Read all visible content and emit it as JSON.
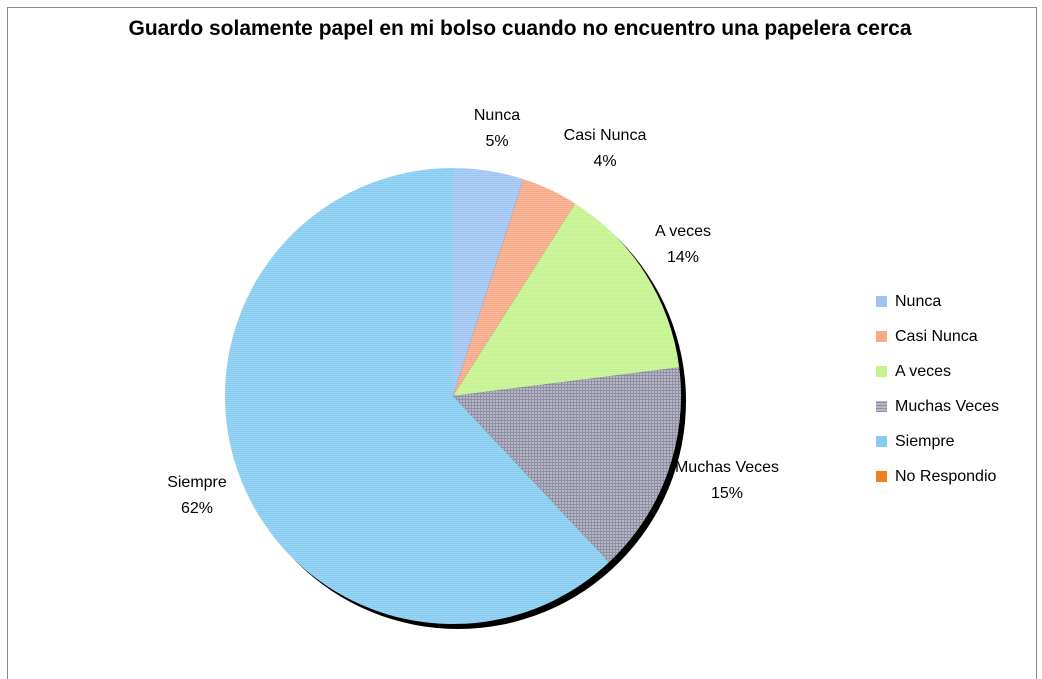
{
  "chart_data": {
    "type": "pie",
    "title": "Guardo solamente papel en mi bolso cuando no encuentro una papelera cerca",
    "legend_position": "right",
    "slices": [
      {
        "name": "Nunca",
        "value": 5,
        "label": "5%",
        "color": "#9fc4f3"
      },
      {
        "name": "Casi  Nunca",
        "value": 4,
        "label": "4%",
        "color": "#f7a987"
      },
      {
        "name": "A veces",
        "value": 14,
        "label": "14%",
        "color": "#c4f28e"
      },
      {
        "name": "Muchas Veces",
        "value": 15,
        "label": "15%",
        "color": "#b4b4c4"
      },
      {
        "name": "Siempre",
        "value": 62,
        "label": "62%",
        "color": "#86ccf0"
      },
      {
        "name": "No Respondio",
        "value": 0,
        "label": "",
        "color": "#f07f22"
      }
    ]
  }
}
